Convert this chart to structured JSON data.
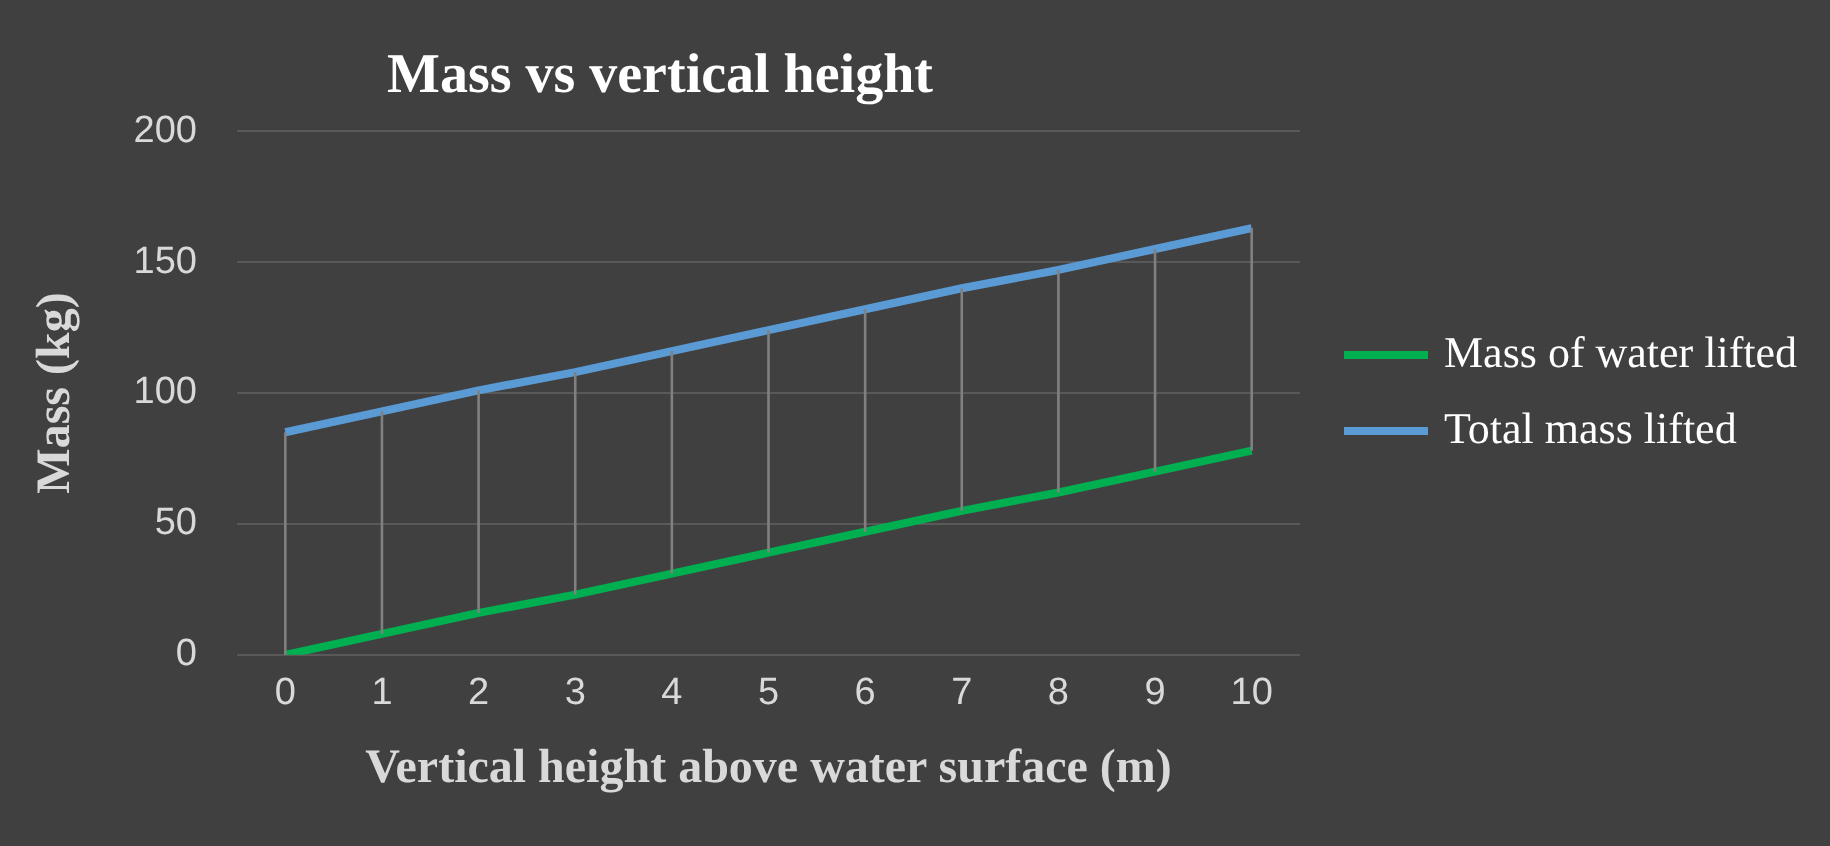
{
  "chart_data": {
    "type": "line",
    "title": "Mass vs vertical height",
    "xlabel": "Vertical height above water surface (m)",
    "ylabel": "Mass (kg)",
    "categories": [
      "0",
      "1",
      "2",
      "3",
      "4",
      "5",
      "6",
      "7",
      "8",
      "9",
      "10"
    ],
    "series": [
      {
        "name": "Mass of water lifted",
        "color": "#00b050",
        "values": [
          0,
          8,
          16,
          23,
          31,
          39,
          47,
          55,
          62,
          70,
          78
        ]
      },
      {
        "name": "Total mass lifted",
        "color": "#5b9bd5",
        "values": [
          85,
          93,
          101,
          108,
          116,
          124,
          132,
          140,
          147,
          155,
          163
        ],
        "errors": [
          [
            0,
            85
          ],
          [
            8,
            93
          ],
          [
            16,
            101
          ],
          [
            23,
            108
          ],
          [
            31,
            116
          ],
          [
            39,
            124
          ],
          [
            47,
            132
          ],
          [
            55,
            140
          ],
          [
            62,
            147
          ],
          [
            70,
            155
          ],
          [
            78,
            163
          ]
        ]
      }
    ],
    "ylim": [
      0,
      200
    ],
    "yticks": [
      0,
      50,
      100,
      150,
      200
    ],
    "grid": "y",
    "legend": "right",
    "marker": "none",
    "line_style": "solid"
  }
}
